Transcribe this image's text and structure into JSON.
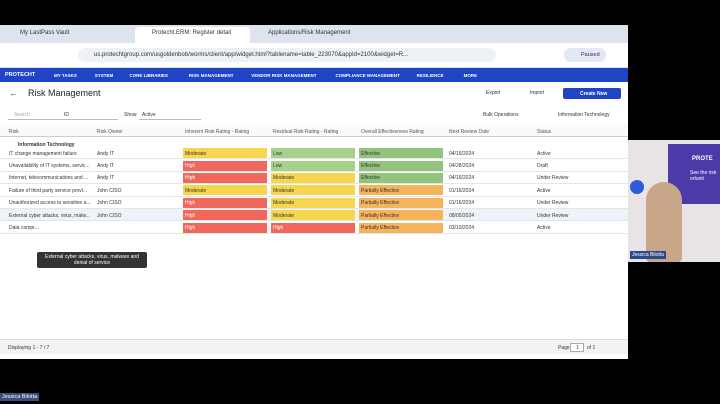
{
  "browser": {
    "tabs": [
      "My LastPass Vault",
      "Protecht.ERM: Register detail",
      "Applications/Risk Management"
    ],
    "url": "us.protechtgroup.com/usgoldenbob/worms/client/app/widget.html?tablename=table_223070&appId=2100&widget=R...",
    "profile": "Paused"
  },
  "nav": {
    "brand": "PROTECHT",
    "items": [
      "MY TASKS",
      "SYSTEM",
      "CORE LIBRARIES",
      "RISK MANAGEMENT",
      "VENDOR RISK MANAGEMENT",
      "COMPLIANCE MANAGEMENT",
      "RESILIENCE",
      "MORE"
    ]
  },
  "page": {
    "title": "Risk Management",
    "actions": [
      "Export",
      "Import",
      "Create New"
    ],
    "search": "Search",
    "field": "ID",
    "show_label": "Show",
    "show_value": "Active",
    "bulk": "Bulk Operations",
    "filter": "Information Technology"
  },
  "table": {
    "columns": [
      "Risk",
      "Risk Owner",
      "Inherent Risk Rating - Rating",
      "Residual Risk Rating - Rating",
      "Overall Effectiveness Rating",
      "Next Review Date",
      "Status"
    ],
    "group": "Information Technology",
    "rows": [
      [
        "IT change management failure",
        "Andy IT",
        "Moderate",
        "Low",
        "Effective",
        "04/16/2024",
        "Active"
      ],
      [
        "Unavailability of IT systems, servic...",
        "Andy IT",
        "High",
        "Low",
        "Effective",
        "04/28/2024",
        "Draft"
      ],
      [
        "Internet, telecommunications and ...",
        "Andy IT",
        "High",
        "Moderate",
        "Effective",
        "04/16/2024",
        "Under Review"
      ],
      [
        "Failure of third party service provi...",
        "John CISO",
        "Moderate",
        "Moderate",
        "Partially Effective",
        "01/16/2024",
        "Active"
      ],
      [
        "Unauthorized access to sensitive a...",
        "John CISO",
        "High",
        "Moderate",
        "Partially Effective",
        "01/16/2024",
        "Under Review"
      ],
      [
        "External cyber attacks, virus, malw...",
        "John CISO",
        "High",
        "Moderate",
        "Partially Effective",
        "08/05/2024",
        "Under Review"
      ],
      [
        "Data compr...",
        null,
        "High",
        "High",
        "Partially Effective",
        "03/10/2024",
        "Active"
      ]
    ],
    "rating_colors": {
      "Moderate": "#f6d64e",
      "High": "#f0675c",
      "Low": "#a8d08d",
      "Effective": "#93c47d",
      "Partially Effective": "#f5b35c"
    },
    "tooltip": "External cyber attacks, virus, malware and denial of service"
  },
  "footer": {
    "displaying": "Displaying 1 - 7 / 7",
    "page_label": "Page",
    "page": "1",
    "of": "of 1"
  },
  "video": {
    "brand": "PROTE",
    "caption": "See the risk ortunit",
    "name": "Jessica Bilotta"
  },
  "presenter": "Jessica Bilotta"
}
